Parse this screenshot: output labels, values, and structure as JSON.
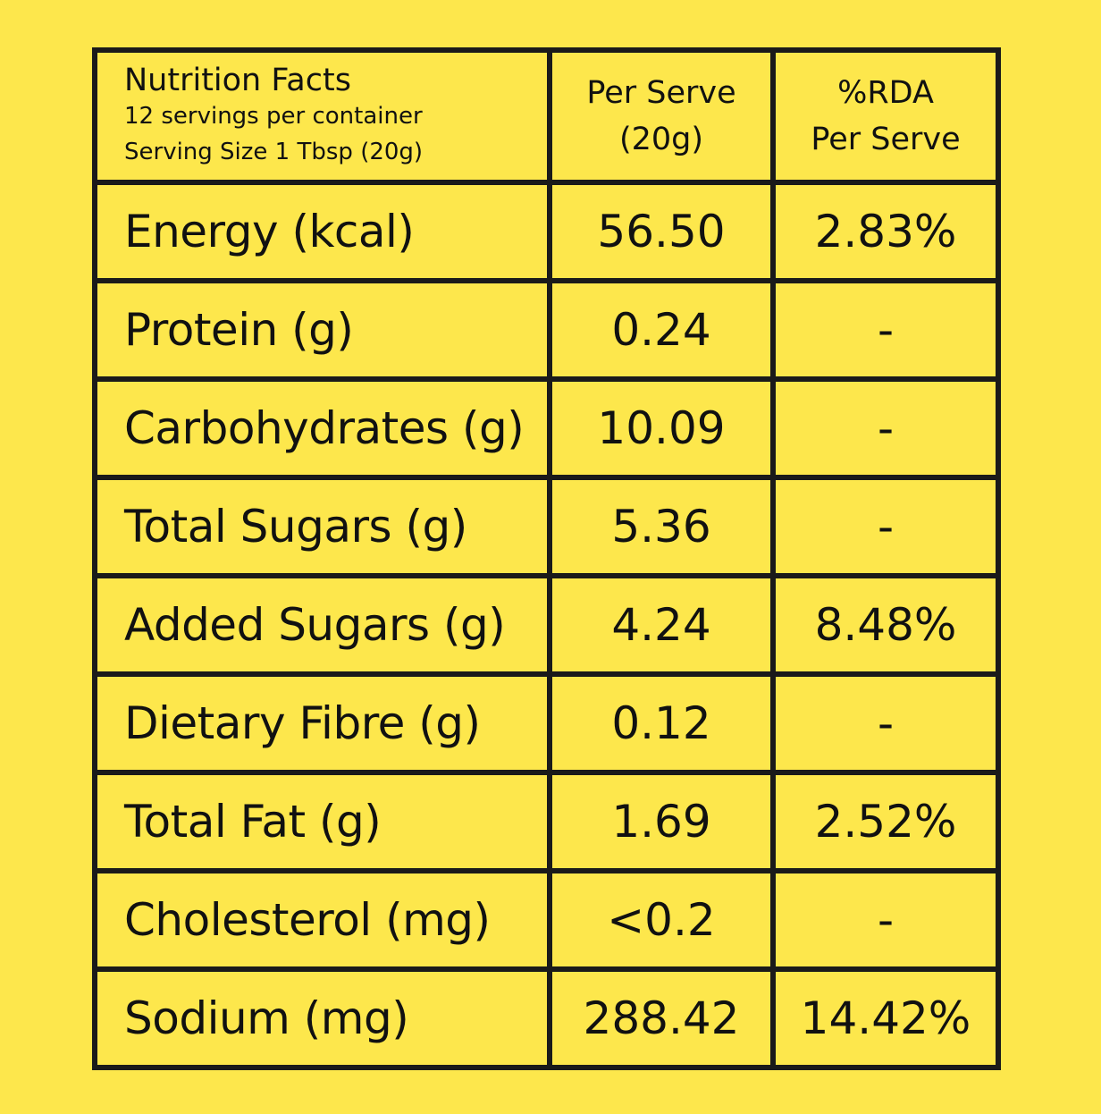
{
  "header": {
    "title": "Nutrition Facts",
    "servings": "12 servings per container",
    "serving_size": "Serving Size 1 Tbsp (20g)",
    "per_serve_line1": "Per Serve",
    "per_serve_line2": "(20g)",
    "rda_line1": "%RDA",
    "rda_line2": "Per Serve"
  },
  "rows": [
    {
      "nutrient": "Energy (kcal)",
      "per_serve": "56.50",
      "rda": "2.83%"
    },
    {
      "nutrient": "Protein (g)",
      "per_serve": "0.24",
      "rda": "-"
    },
    {
      "nutrient": "Carbohydrates (g)",
      "per_serve": "10.09",
      "rda": "-"
    },
    {
      "nutrient": "Total Sugars (g)",
      "per_serve": "5.36",
      "rda": "-"
    },
    {
      "nutrient": "Added Sugars (g)",
      "per_serve": "4.24",
      "rda": "8.48%"
    },
    {
      "nutrient": "Dietary Fibre (g)",
      "per_serve": "0.12",
      "rda": "-"
    },
    {
      "nutrient": "Total Fat (g)",
      "per_serve": "1.69",
      "rda": "2.52%"
    },
    {
      "nutrient": "Cholesterol (mg)",
      "per_serve": "<0.2",
      "rda": "-"
    },
    {
      "nutrient": "Sodium (mg)",
      "per_serve": "288.42",
      "rda": "14.42%"
    }
  ],
  "colors": {
    "background": "#FDE74C",
    "border": "#1a1a1a",
    "text": "#111111"
  }
}
